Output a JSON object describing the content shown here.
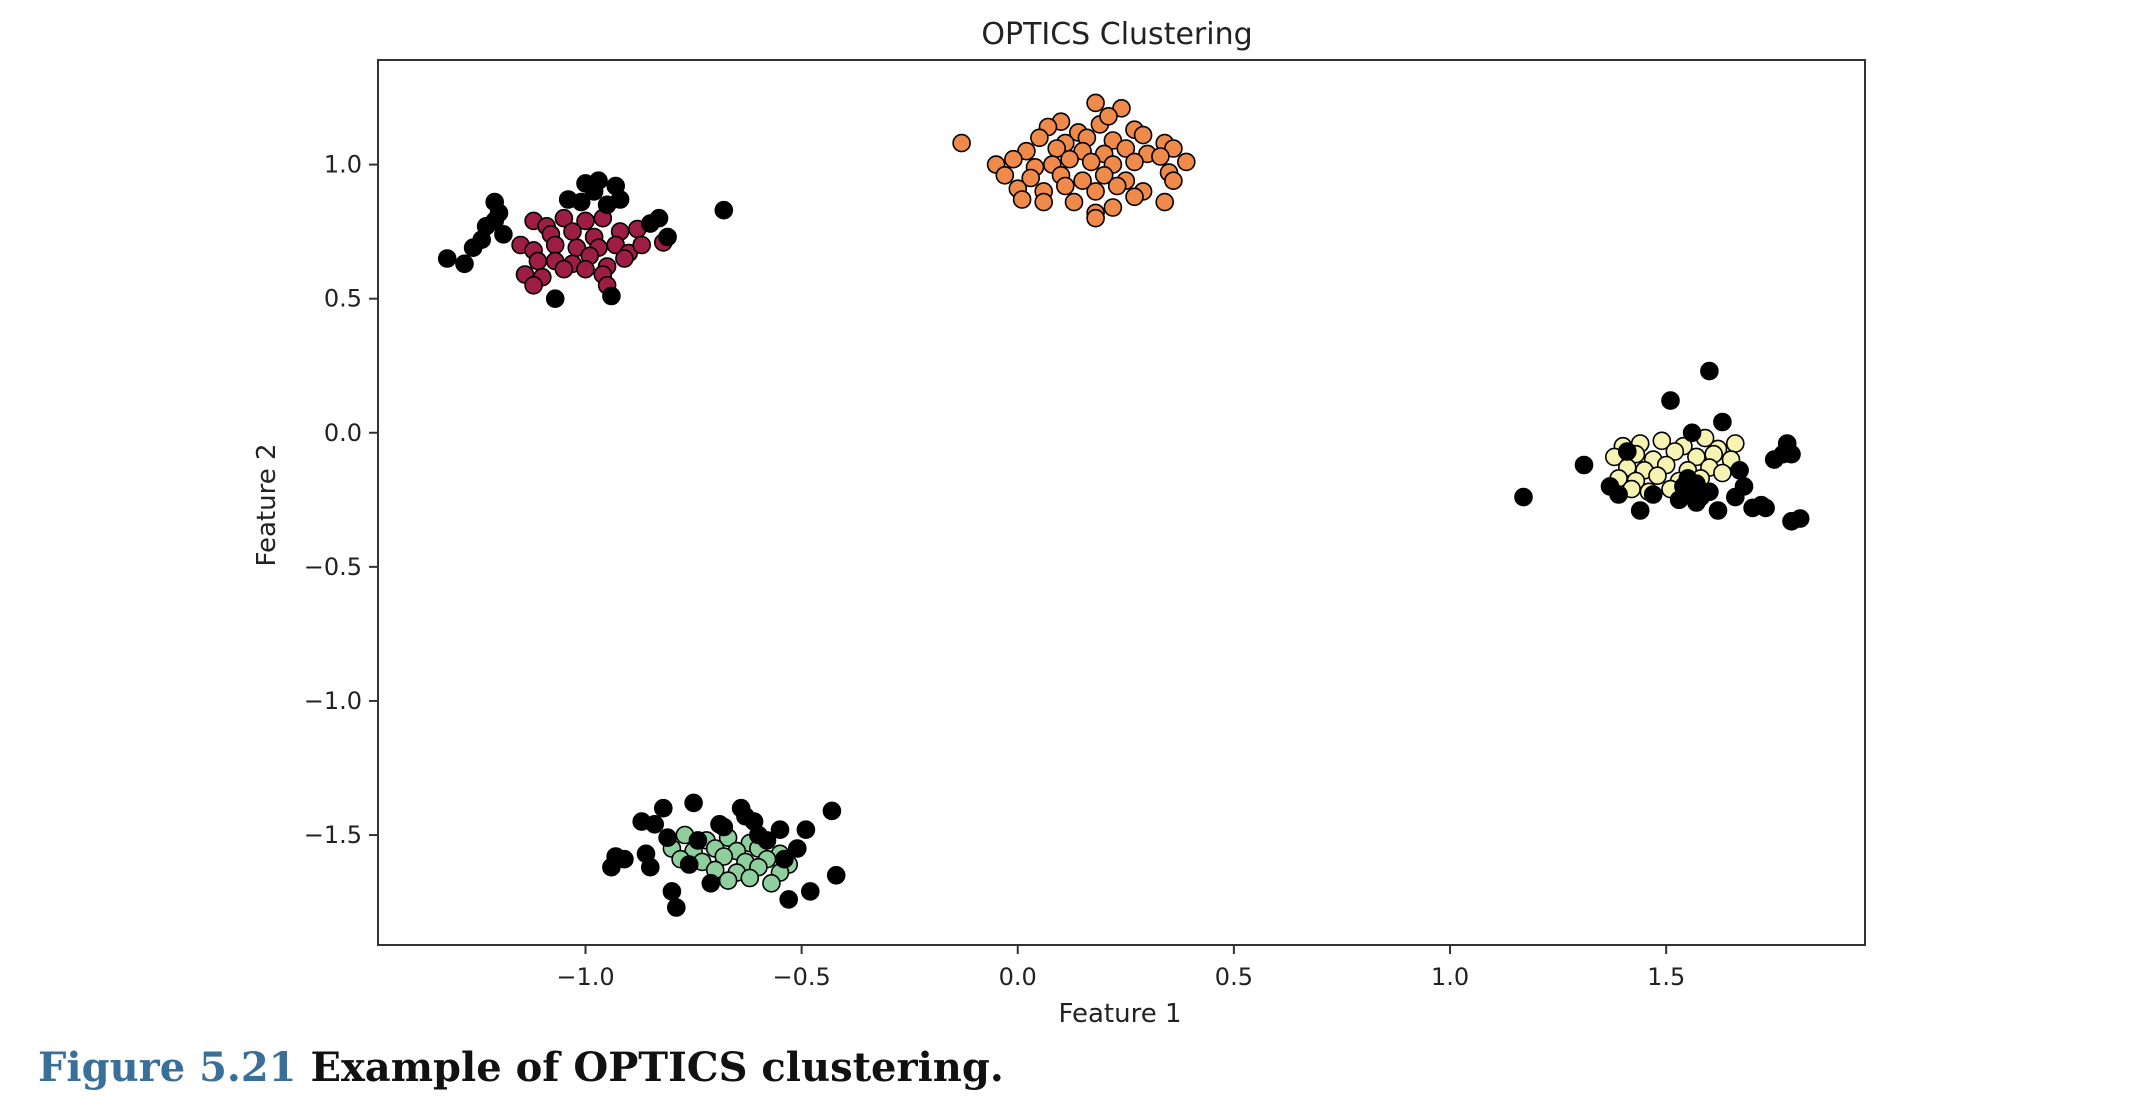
{
  "chart_data": {
    "type": "scatter",
    "title": "OPTICS Clustering",
    "xlabel": "Feature 1",
    "ylabel": "Feature 2",
    "xlim": [
      -1.48,
      1.96
    ],
    "ylim": [
      -1.91,
      1.39
    ],
    "xticks": [
      -1.0,
      -0.5,
      0.0,
      0.5,
      1.0,
      1.5
    ],
    "xtick_labels": [
      "−1.0",
      "−0.5",
      "0.0",
      "0.5",
      "1.0",
      "1.5"
    ],
    "yticks": [
      1.0,
      0.5,
      0.0,
      -0.5,
      -1.0,
      -1.5
    ],
    "ytick_labels": [
      "1.0",
      "0.5",
      "0.0",
      "−0.5",
      "−1.0",
      "−1.5"
    ],
    "grid": false,
    "legend": "none",
    "series": [
      {
        "color": "#9e1d45",
        "points": [
          [
            -1.12,
            0.79
          ],
          [
            -1.09,
            0.77
          ],
          [
            -1.05,
            0.8
          ],
          [
            -1.0,
            0.79
          ],
          [
            -0.96,
            0.8
          ],
          [
            -1.08,
            0.74
          ],
          [
            -1.03,
            0.75
          ],
          [
            -0.98,
            0.73
          ],
          [
            -0.92,
            0.75
          ],
          [
            -0.88,
            0.76
          ],
          [
            -1.15,
            0.7
          ],
          [
            -1.12,
            0.68
          ],
          [
            -1.07,
            0.7
          ],
          [
            -1.02,
            0.69
          ],
          [
            -0.97,
            0.69
          ],
          [
            -0.93,
            0.7
          ],
          [
            -0.9,
            0.67
          ],
          [
            -0.87,
            0.7
          ],
          [
            -1.11,
            0.64
          ],
          [
            -1.07,
            0.64
          ],
          [
            -1.03,
            0.63
          ],
          [
            -0.99,
            0.66
          ],
          [
            -0.95,
            0.62
          ],
          [
            -0.91,
            0.65
          ],
          [
            -1.14,
            0.59
          ],
          [
            -1.1,
            0.58
          ],
          [
            -1.05,
            0.61
          ],
          [
            -1.0,
            0.61
          ],
          [
            -0.96,
            0.59
          ],
          [
            -1.12,
            0.55
          ],
          [
            -0.95,
            0.55
          ],
          [
            -0.82,
            0.71
          ]
        ]
      },
      {
        "color": "#f08a4a",
        "points": [
          [
            -0.13,
            1.08
          ],
          [
            0.1,
            1.16
          ],
          [
            0.18,
            1.23
          ],
          [
            0.24,
            1.21
          ],
          [
            0.07,
            1.14
          ],
          [
            0.14,
            1.12
          ],
          [
            0.19,
            1.15
          ],
          [
            0.21,
            1.18
          ],
          [
            0.27,
            1.13
          ],
          [
            0.05,
            1.1
          ],
          [
            0.11,
            1.08
          ],
          [
            0.16,
            1.1
          ],
          [
            0.22,
            1.09
          ],
          [
            0.29,
            1.11
          ],
          [
            0.34,
            1.08
          ],
          [
            0.36,
            1.06
          ],
          [
            0.02,
            1.05
          ],
          [
            0.09,
            1.06
          ],
          [
            0.15,
            1.05
          ],
          [
            0.2,
            1.04
          ],
          [
            0.25,
            1.06
          ],
          [
            0.3,
            1.04
          ],
          [
            -0.05,
            1.0
          ],
          [
            -0.01,
            1.02
          ],
          [
            0.04,
            0.99
          ],
          [
            0.08,
            1.0
          ],
          [
            0.12,
            1.02
          ],
          [
            0.17,
            1.01
          ],
          [
            0.22,
            1.0
          ],
          [
            0.27,
            1.01
          ],
          [
            0.33,
            1.03
          ],
          [
            0.39,
            1.01
          ],
          [
            -0.03,
            0.96
          ],
          [
            0.03,
            0.95
          ],
          [
            0.1,
            0.96
          ],
          [
            0.15,
            0.94
          ],
          [
            0.2,
            0.96
          ],
          [
            0.25,
            0.94
          ],
          [
            0.35,
            0.97
          ],
          [
            0.0,
            0.91
          ],
          [
            0.06,
            0.9
          ],
          [
            0.11,
            0.92
          ],
          [
            0.18,
            0.9
          ],
          [
            0.23,
            0.92
          ],
          [
            0.29,
            0.9
          ],
          [
            0.36,
            0.94
          ],
          [
            0.01,
            0.87
          ],
          [
            0.06,
            0.86
          ],
          [
            0.13,
            0.86
          ],
          [
            0.18,
            0.82
          ],
          [
            0.22,
            0.84
          ],
          [
            0.27,
            0.88
          ],
          [
            0.34,
            0.86
          ],
          [
            0.18,
            0.8
          ]
        ]
      },
      {
        "color": "#f6f3b3",
        "points": [
          [
            1.4,
            -0.05
          ],
          [
            1.44,
            -0.04
          ],
          [
            1.49,
            -0.03
          ],
          [
            1.54,
            -0.05
          ],
          [
            1.59,
            -0.02
          ],
          [
            1.62,
            -0.06
          ],
          [
            1.66,
            -0.04
          ],
          [
            1.38,
            -0.09
          ],
          [
            1.43,
            -0.08
          ],
          [
            1.47,
            -0.1
          ],
          [
            1.52,
            -0.07
          ],
          [
            1.57,
            -0.09
          ],
          [
            1.61,
            -0.08
          ],
          [
            1.65,
            -0.1
          ],
          [
            1.41,
            -0.13
          ],
          [
            1.45,
            -0.14
          ],
          [
            1.5,
            -0.12
          ],
          [
            1.55,
            -0.14
          ],
          [
            1.6,
            -0.13
          ],
          [
            1.63,
            -0.15
          ],
          [
            1.39,
            -0.17
          ],
          [
            1.43,
            -0.18
          ],
          [
            1.48,
            -0.16
          ],
          [
            1.53,
            -0.18
          ],
          [
            1.58,
            -0.17
          ],
          [
            1.42,
            -0.21
          ],
          [
            1.46,
            -0.22
          ],
          [
            1.51,
            -0.21
          ],
          [
            1.56,
            -0.23
          ]
        ]
      },
      {
        "color": "#8fcf9d",
        "points": [
          [
            -0.77,
            -1.5
          ],
          [
            -0.72,
            -1.52
          ],
          [
            -0.67,
            -1.51
          ],
          [
            -0.62,
            -1.53
          ],
          [
            -0.8,
            -1.55
          ],
          [
            -0.75,
            -1.56
          ],
          [
            -0.7,
            -1.55
          ],
          [
            -0.65,
            -1.56
          ],
          [
            -0.6,
            -1.55
          ],
          [
            -0.55,
            -1.57
          ],
          [
            -0.78,
            -1.59
          ],
          [
            -0.73,
            -1.6
          ],
          [
            -0.68,
            -1.58
          ],
          [
            -0.63,
            -1.6
          ],
          [
            -0.58,
            -1.59
          ],
          [
            -0.53,
            -1.61
          ],
          [
            -0.7,
            -1.63
          ],
          [
            -0.65,
            -1.64
          ],
          [
            -0.6,
            -1.62
          ],
          [
            -0.55,
            -1.64
          ],
          [
            -0.67,
            -1.67
          ],
          [
            -0.62,
            -1.66
          ],
          [
            -0.57,
            -1.68
          ]
        ]
      },
      {
        "color": "#000000",
        "points": [
          [
            -1.32,
            0.65
          ],
          [
            -1.28,
            0.63
          ],
          [
            -1.26,
            0.69
          ],
          [
            -1.24,
            0.72
          ],
          [
            -1.23,
            0.77
          ],
          [
            -1.21,
            0.79
          ],
          [
            -1.21,
            0.86
          ],
          [
            -1.2,
            0.82
          ],
          [
            -1.19,
            0.74
          ],
          [
            -1.04,
            0.87
          ],
          [
            -1.01,
            0.86
          ],
          [
            -1.0,
            0.93
          ],
          [
            -0.98,
            0.9
          ],
          [
            -0.97,
            0.94
          ],
          [
            -0.95,
            0.85
          ],
          [
            -0.93,
            0.92
          ],
          [
            -0.92,
            0.87
          ],
          [
            -0.85,
            0.78
          ],
          [
            -0.83,
            0.8
          ],
          [
            -0.81,
            0.73
          ],
          [
            -1.07,
            0.5
          ],
          [
            -0.94,
            0.51
          ],
          [
            -0.68,
            0.83
          ],
          [
            1.17,
            -0.24
          ],
          [
            1.31,
            -0.12
          ],
          [
            1.37,
            -0.2
          ],
          [
            1.39,
            -0.23
          ],
          [
            1.41,
            -0.07
          ],
          [
            1.44,
            -0.29
          ],
          [
            1.47,
            -0.23
          ],
          [
            1.51,
            0.12
          ],
          [
            1.53,
            -0.25
          ],
          [
            1.54,
            -0.2
          ],
          [
            1.55,
            -0.17
          ],
          [
            1.55,
            -0.22
          ],
          [
            1.56,
            0.0
          ],
          [
            1.57,
            -0.26
          ],
          [
            1.57,
            -0.19
          ],
          [
            1.58,
            -0.24
          ],
          [
            1.6,
            -0.22
          ],
          [
            1.6,
            0.23
          ],
          [
            1.62,
            -0.29
          ],
          [
            1.63,
            0.04
          ],
          [
            1.66,
            -0.24
          ],
          [
            1.67,
            -0.14
          ],
          [
            1.68,
            -0.2
          ],
          [
            1.7,
            -0.28
          ],
          [
            1.72,
            -0.27
          ],
          [
            1.73,
            -0.28
          ],
          [
            1.75,
            -0.1
          ],
          [
            1.77,
            -0.08
          ],
          [
            1.78,
            -0.04
          ],
          [
            1.79,
            -0.08
          ],
          [
            1.79,
            -0.33
          ],
          [
            1.81,
            -0.32
          ],
          [
            -0.94,
            -1.62
          ],
          [
            -0.93,
            -1.58
          ],
          [
            -0.91,
            -1.59
          ],
          [
            -0.87,
            -1.45
          ],
          [
            -0.86,
            -1.57
          ],
          [
            -0.85,
            -1.62
          ],
          [
            -0.84,
            -1.46
          ],
          [
            -0.82,
            -1.4
          ],
          [
            -0.81,
            -1.51
          ],
          [
            -0.8,
            -1.71
          ],
          [
            -0.79,
            -1.77
          ],
          [
            -0.76,
            -1.61
          ],
          [
            -0.75,
            -1.38
          ],
          [
            -0.74,
            -1.52
          ],
          [
            -0.71,
            -1.68
          ],
          [
            -0.69,
            -1.46
          ],
          [
            -0.68,
            -1.47
          ],
          [
            -0.64,
            -1.4
          ],
          [
            -0.63,
            -1.43
          ],
          [
            -0.61,
            -1.45
          ],
          [
            -0.6,
            -1.5
          ],
          [
            -0.58,
            -1.52
          ],
          [
            -0.55,
            -1.48
          ],
          [
            -0.54,
            -1.59
          ],
          [
            -0.53,
            -1.74
          ],
          [
            -0.51,
            -1.55
          ],
          [
            -0.49,
            -1.48
          ],
          [
            -0.48,
            -1.71
          ],
          [
            -0.43,
            -1.41
          ],
          [
            -0.42,
            -1.65
          ]
        ]
      }
    ]
  },
  "caption": {
    "figure_number": "Figure 5.21",
    "text": "Example of OPTICS clustering."
  }
}
